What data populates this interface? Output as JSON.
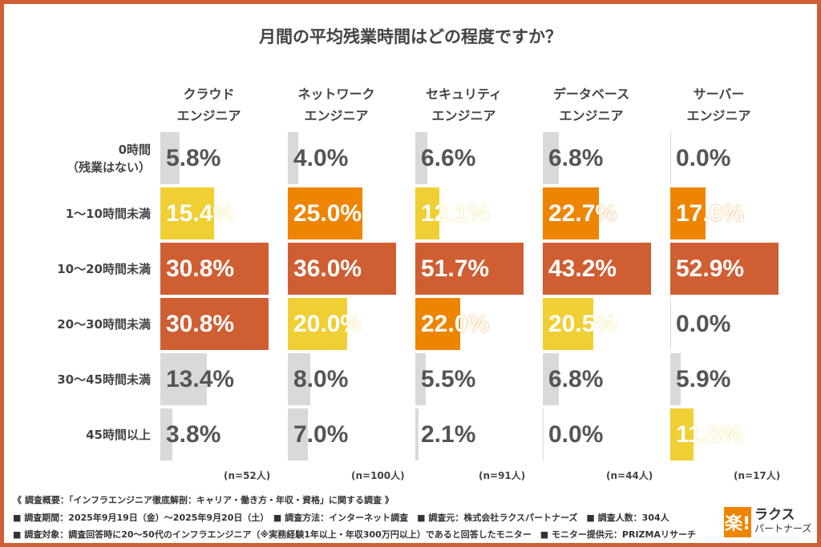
{
  "chart_data": {
    "type": "bar",
    "title": "月間の平均残業時間はどの程度ですか？",
    "categories": [
      "0時間\n（残業はない）",
      "1〜10時間未満",
      "10〜20時間未満",
      "20〜30時間未満",
      "30〜45時間未満",
      "45時間以上"
    ],
    "series": [
      {
        "name": "クラウド\nエンジニア",
        "n": "(n=52人)",
        "values": [
          5.8,
          15.4,
          30.8,
          30.8,
          13.4,
          3.8
        ]
      },
      {
        "name": "ネットワーク\nエンジニア",
        "n": "(n=100人)",
        "values": [
          4.0,
          25.0,
          36.0,
          20.0,
          8.0,
          7.0
        ]
      },
      {
        "name": "セキュリティ\nエンジニア",
        "n": "(n=91人)",
        "values": [
          6.6,
          12.1,
          51.7,
          22.0,
          5.5,
          2.1
        ]
      },
      {
        "name": "データベース\nエンジニア",
        "n": "(n=44人)",
        "values": [
          6.8,
          22.7,
          43.2,
          20.5,
          6.8,
          0.0
        ]
      },
      {
        "name": "サーバー\nエンジニア",
        "n": "(n=17人)",
        "values": [
          0.0,
          17.6,
          52.9,
          0.0,
          5.9,
          11.8
        ]
      }
    ],
    "unit": "%",
    "rank_colors": {
      "first": "#D05E33",
      "second": "#EE8500",
      "third": "#F0CF35",
      "other": "#D9D9D9"
    }
  },
  "footer": {
    "line1": "《 調査概要：「インフラエンジニア徹底解剖：キャリア・働き方・年収・資格」に関する調査 》",
    "line2": "■ 調査期間：2025年9月19日（金）〜2025年9月20日（土）　■ 調査方法：インターネット調査　■ 調査元：株式会社ラクスパートナーズ　■ 調査人数：304人",
    "line3": "■ 調査対象：調査回答時に20〜50代のインフラエンジニア（※実務経験1年以上・年収300万円以上）であると回答したモニター　■ モニター提供元：PRIZMAリサーチ"
  },
  "logo": {
    "mark": "楽!",
    "name": "ラクス",
    "sub": "パートナーズ"
  }
}
